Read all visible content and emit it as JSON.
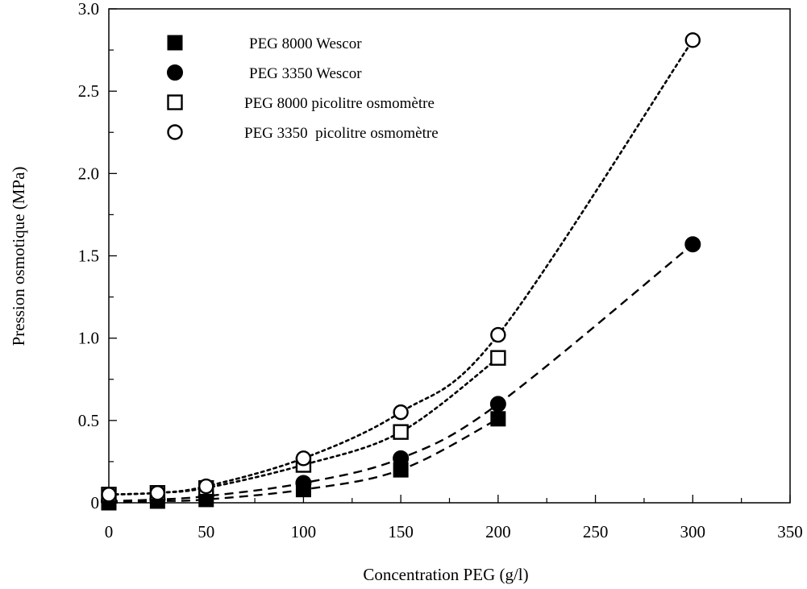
{
  "chart_data": {
    "type": "scatter",
    "title": "",
    "xlabel": "Concentration PEG (g/l)",
    "ylabel": "Pression osmotique (MPa)",
    "xlim": [
      0,
      350
    ],
    "ylim": [
      0,
      3.0
    ],
    "x_ticks": [
      "0",
      "50",
      "100",
      "150",
      "200",
      "250",
      "300",
      "350"
    ],
    "y_ticks": [
      "0",
      "0.5",
      "1.0",
      "1.5",
      "2.0",
      "2.5",
      "3.0"
    ],
    "grid": false,
    "legend_position": "top-left",
    "series": [
      {
        "name": "PEG 8000 Wescor",
        "marker": "filled-square",
        "line": "dashed",
        "x": [
          0,
          25,
          50,
          100,
          150,
          200
        ],
        "y": [
          0.0,
          0.01,
          0.02,
          0.08,
          0.2,
          0.51
        ]
      },
      {
        "name": "PEG 3350 Wescor",
        "marker": "filled-circle",
        "line": "dashed",
        "x": [
          0,
          25,
          50,
          100,
          150,
          200,
          300
        ],
        "y": [
          0.01,
          0.02,
          0.04,
          0.12,
          0.27,
          0.6,
          1.57
        ]
      },
      {
        "name": "PEG 8000 picolitre osmomètre",
        "marker": "open-square",
        "line": "dotted",
        "x": [
          0,
          25,
          50,
          100,
          150,
          200
        ],
        "y": [
          0.05,
          0.06,
          0.09,
          0.23,
          0.43,
          0.88
        ]
      },
      {
        "name": "PEG 3350  picolitre osmomètre",
        "marker": "open-circle",
        "line": "dotted",
        "x": [
          0,
          25,
          50,
          100,
          150,
          200,
          300
        ],
        "y": [
          0.05,
          0.06,
          0.1,
          0.27,
          0.55,
          1.02,
          2.81
        ]
      }
    ]
  }
}
